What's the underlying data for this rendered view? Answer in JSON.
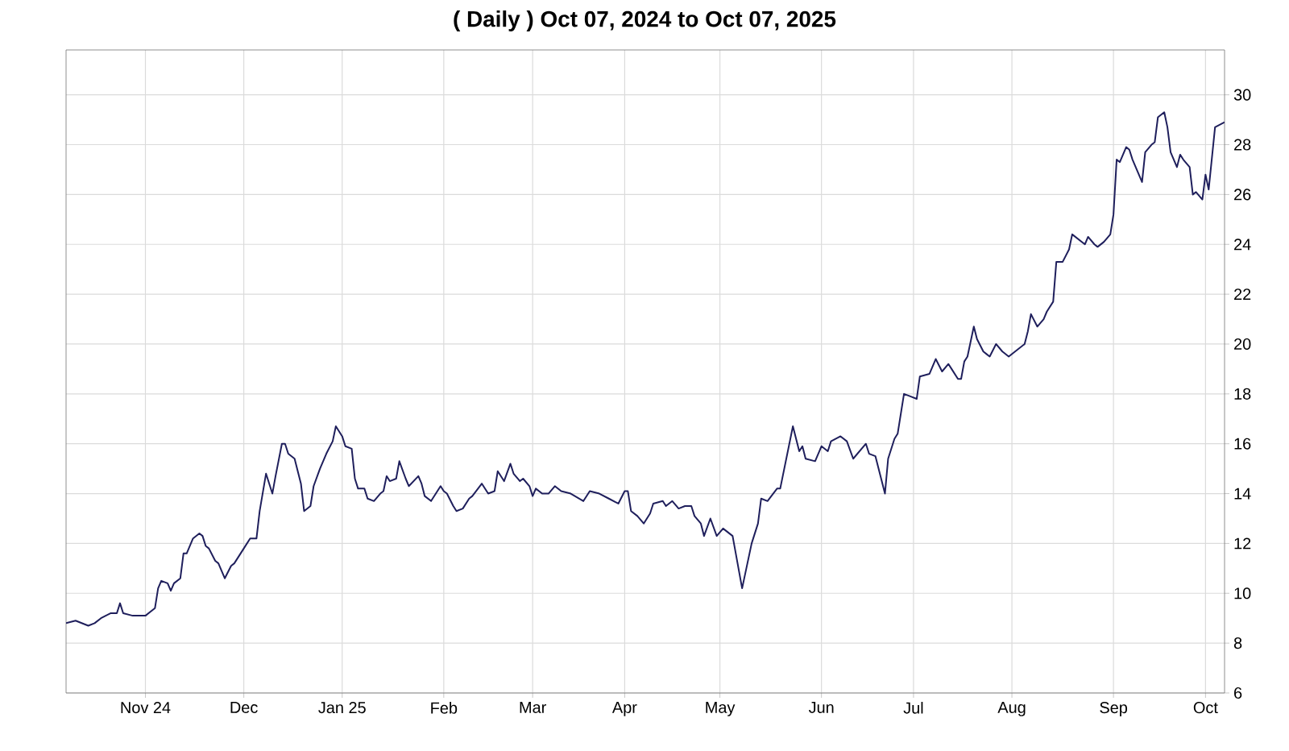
{
  "chart_data": {
    "type": "line",
    "title": "( Daily ) Oct 07, 2024 to Oct 07, 2025",
    "x": [
      "2024-10-07",
      "2024-10-10",
      "2024-10-14",
      "2024-10-16",
      "2024-10-18",
      "2024-10-21",
      "2024-10-23",
      "2024-10-24",
      "2024-10-25",
      "2024-10-28",
      "2024-11-01",
      "2024-11-04",
      "2024-11-05",
      "2024-11-06",
      "2024-11-08",
      "2024-11-09",
      "2024-11-10",
      "2024-11-12",
      "2024-11-13",
      "2024-11-14",
      "2024-11-16",
      "2024-11-18",
      "2024-11-19",
      "2024-11-20",
      "2024-11-21",
      "2024-11-23",
      "2024-11-24",
      "2024-11-26",
      "2024-11-28",
      "2024-11-29",
      "2024-12-02",
      "2024-12-04",
      "2024-12-06",
      "2024-12-07",
      "2024-12-09",
      "2024-12-11",
      "2024-12-12",
      "2024-12-14",
      "2024-12-15",
      "2024-12-16",
      "2024-12-18",
      "2024-12-20",
      "2024-12-21",
      "2024-12-23",
      "2024-12-24",
      "2024-12-26",
      "2024-12-28",
      "2024-12-30",
      "2024-12-31",
      "2025-01-02",
      "2025-01-03",
      "2025-01-05",
      "2025-01-06",
      "2025-01-07",
      "2025-01-09",
      "2025-01-10",
      "2025-01-12",
      "2025-01-14",
      "2025-01-15",
      "2025-01-16",
      "2025-01-17",
      "2025-01-19",
      "2025-01-20",
      "2025-01-22",
      "2025-01-23",
      "2025-01-26",
      "2025-01-27",
      "2025-01-28",
      "2025-01-30",
      "2025-02-02",
      "2025-02-03",
      "2025-02-04",
      "2025-02-06",
      "2025-02-07",
      "2025-02-09",
      "2025-02-11",
      "2025-02-12",
      "2025-02-15",
      "2025-02-17",
      "2025-02-19",
      "2025-02-20",
      "2025-02-22",
      "2025-02-24",
      "2025-02-25",
      "2025-02-27",
      "2025-02-28",
      "2025-03-02",
      "2025-03-03",
      "2025-03-04",
      "2025-03-06",
      "2025-03-08",
      "2025-03-10",
      "2025-03-12",
      "2025-03-15",
      "2025-03-19",
      "2025-03-21",
      "2025-03-24",
      "2025-03-27",
      "2025-03-30",
      "2025-04-01",
      "2025-04-02",
      "2025-04-03",
      "2025-04-05",
      "2025-04-07",
      "2025-04-09",
      "2025-04-10",
      "2025-04-13",
      "2025-04-14",
      "2025-04-16",
      "2025-04-18",
      "2025-04-20",
      "2025-04-22",
      "2025-04-23",
      "2025-04-25",
      "2025-04-26",
      "2025-04-28",
      "2025-04-30",
      "2025-05-02",
      "2025-05-05",
      "2025-05-08",
      "2025-05-11",
      "2025-05-13",
      "2025-05-14",
      "2025-05-16",
      "2025-05-19",
      "2025-05-20",
      "2025-05-24",
      "2025-05-26",
      "2025-05-27",
      "2025-05-28",
      "2025-05-31",
      "2025-06-02",
      "2025-06-04",
      "2025-06-05",
      "2025-06-08",
      "2025-06-10",
      "2025-06-12",
      "2025-06-16",
      "2025-06-17",
      "2025-06-19",
      "2025-06-22",
      "2025-06-23",
      "2025-06-25",
      "2025-06-26",
      "2025-06-28",
      "2025-06-30",
      "2025-07-02",
      "2025-07-03",
      "2025-07-06",
      "2025-07-08",
      "2025-07-10",
      "2025-07-12",
      "2025-07-13",
      "2025-07-15",
      "2025-07-16",
      "2025-07-17",
      "2025-07-18",
      "2025-07-20",
      "2025-07-21",
      "2025-07-23",
      "2025-07-24",
      "2025-07-25",
      "2025-07-27",
      "2025-07-29",
      "2025-07-31",
      "2025-08-02",
      "2025-08-05",
      "2025-08-06",
      "2025-08-07",
      "2025-08-09",
      "2025-08-11",
      "2025-08-12",
      "2025-08-14",
      "2025-08-15",
      "2025-08-17",
      "2025-08-19",
      "2025-08-20",
      "2025-08-22",
      "2025-08-24",
      "2025-08-25",
      "2025-08-27",
      "2025-08-28",
      "2025-08-30",
      "2025-09-01",
      "2025-09-02",
      "2025-09-03",
      "2025-09-04",
      "2025-09-06",
      "2025-09-07",
      "2025-09-08",
      "2025-09-10",
      "2025-09-11",
      "2025-09-12",
      "2025-09-14",
      "2025-09-15",
      "2025-09-16",
      "2025-09-18",
      "2025-09-19",
      "2025-09-20",
      "2025-09-22",
      "2025-09-23",
      "2025-09-24",
      "2025-09-26",
      "2025-09-27",
      "2025-09-28",
      "2025-09-30",
      "2025-10-01",
      "2025-10-02",
      "2025-10-04",
      "2025-10-07"
    ],
    "values": [
      8.8,
      8.9,
      8.7,
      8.8,
      9.0,
      9.2,
      9.2,
      9.6,
      9.2,
      9.1,
      9.1,
      9.4,
      10.2,
      10.5,
      10.4,
      10.1,
      10.4,
      10.6,
      11.6,
      11.6,
      12.2,
      12.4,
      12.3,
      11.9,
      11.8,
      11.3,
      11.2,
      10.6,
      11.1,
      11.2,
      11.8,
      12.2,
      12.2,
      13.3,
      14.8,
      14.0,
      14.7,
      16.0,
      16.0,
      15.6,
      15.4,
      14.4,
      13.3,
      13.5,
      14.3,
      15.0,
      15.6,
      16.1,
      16.7,
      16.3,
      15.9,
      15.8,
      14.6,
      14.2,
      14.2,
      13.8,
      13.7,
      14.0,
      14.1,
      14.7,
      14.5,
      14.6,
      15.3,
      14.6,
      14.3,
      14.7,
      14.4,
      13.9,
      13.7,
      14.3,
      14.1,
      14.0,
      13.5,
      13.3,
      13.4,
      13.8,
      13.9,
      14.4,
      14.0,
      14.1,
      14.9,
      14.5,
      15.2,
      14.8,
      14.5,
      14.6,
      14.3,
      13.9,
      14.2,
      14.0,
      14.0,
      14.3,
      14.1,
      14.0,
      13.7,
      14.1,
      14.0,
      13.8,
      13.6,
      14.1,
      14.1,
      13.3,
      13.1,
      12.8,
      13.2,
      13.6,
      13.7,
      13.5,
      13.7,
      13.4,
      13.5,
      13.5,
      13.1,
      12.8,
      12.3,
      13.0,
      12.3,
      12.6,
      12.3,
      10.2,
      12.0,
      12.8,
      13.8,
      13.7,
      14.2,
      14.2,
      16.7,
      15.7,
      15.9,
      15.4,
      15.3,
      15.9,
      15.7,
      16.1,
      16.3,
      16.1,
      15.4,
      16.0,
      15.6,
      15.5,
      14.0,
      15.4,
      16.2,
      16.4,
      18.0,
      17.9,
      17.8,
      18.7,
      18.8,
      19.4,
      18.9,
      19.2,
      19.0,
      18.6,
      18.6,
      19.3,
      19.5,
      20.7,
      20.2,
      19.7,
      19.6,
      19.5,
      20.0,
      19.7,
      19.5,
      19.7,
      20.0,
      20.5,
      21.2,
      20.7,
      21.0,
      21.3,
      21.7,
      23.3,
      23.3,
      23.8,
      24.4,
      24.2,
      24.0,
      24.3,
      24.0,
      23.9,
      24.1,
      24.4,
      25.2,
      27.4,
      27.3,
      27.9,
      27.8,
      27.4,
      26.8,
      26.5,
      27.7,
      28.0,
      28.1,
      29.1,
      29.3,
      28.7,
      27.7,
      27.1,
      27.6,
      27.4,
      27.1,
      26.0,
      26.1,
      25.8,
      26.8,
      26.2,
      28.7,
      28.9
    ],
    "color": "#1f1f5c",
    "xlim": [
      "2024-10-07",
      "2025-10-07"
    ],
    "xticks": [
      {
        "value": "2024-11-01",
        "label": "Nov 24"
      },
      {
        "value": "2024-12-02",
        "label": "Dec"
      },
      {
        "value": "2025-01-02",
        "label": "Jan 25"
      },
      {
        "value": "2025-02-03",
        "label": "Feb"
      },
      {
        "value": "2025-03-03",
        "label": "Mar"
      },
      {
        "value": "2025-04-01",
        "label": "Apr"
      },
      {
        "value": "2025-05-01",
        "label": "May"
      },
      {
        "value": "2025-06-02",
        "label": "Jun"
      },
      {
        "value": "2025-07-01",
        "label": "Jul"
      },
      {
        "value": "2025-08-01",
        "label": "Aug"
      },
      {
        "value": "2025-09-02",
        "label": "Sep"
      },
      {
        "value": "2025-10-01",
        "label": "Oct"
      }
    ],
    "ylim": [
      6,
      31.8
    ],
    "yticks": [
      6,
      8,
      10,
      12,
      14,
      16,
      18,
      20,
      22,
      24,
      26,
      28,
      30
    ],
    "grid": true
  }
}
